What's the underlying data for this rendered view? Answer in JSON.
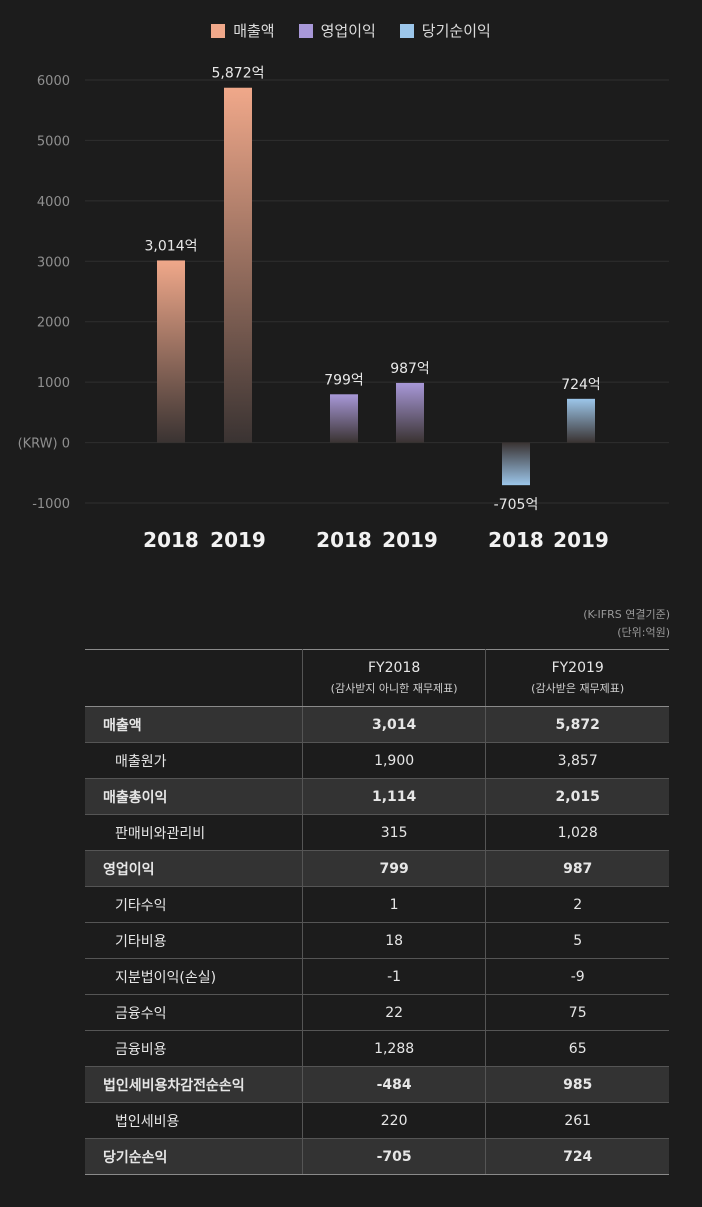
{
  "legend": [
    {
      "label": "매출액",
      "color": "#f0a88a"
    },
    {
      "label": "영업이익",
      "color": "#a898d8"
    },
    {
      "label": "당기순이익",
      "color": "#9cc6ea"
    }
  ],
  "chart_data": {
    "type": "bar",
    "ylabel": "(KRW) 0",
    "ylim": [
      -1000,
      6000
    ],
    "yticks": [
      6000,
      5000,
      4000,
      3000,
      2000,
      1000,
      -1000
    ],
    "grid": true,
    "legend_position": "top-center",
    "groups": [
      {
        "series": "매출액",
        "color": "#f0a88a",
        "bars": [
          {
            "year": "2018",
            "value": 3014,
            "label": "3,014억"
          },
          {
            "year": "2019",
            "value": 5872,
            "label": "5,872억"
          }
        ]
      },
      {
        "series": "영업이익",
        "color": "#a898d8",
        "bars": [
          {
            "year": "2018",
            "value": 799,
            "label": "799억"
          },
          {
            "year": "2019",
            "value": 987,
            "label": "987억"
          }
        ]
      },
      {
        "series": "당기순이익",
        "color": "#9cc6ea",
        "bars": [
          {
            "year": "2018",
            "value": -705,
            "label": "-705억"
          },
          {
            "year": "2019",
            "value": 724,
            "label": "724억"
          }
        ]
      }
    ]
  },
  "notes": {
    "line1": "(K-IFRS 연결기준)",
    "line2": "(단위:억원)"
  },
  "table": {
    "headers": [
      {
        "title": "",
        "sub": ""
      },
      {
        "title": "FY2018",
        "sub": "(감사받지 아니한 재무제표)"
      },
      {
        "title": "FY2019",
        "sub": "(감사받은 재무제표)"
      }
    ],
    "rows": [
      {
        "label": "매출액",
        "v2018": "3,014",
        "v2019": "5,872",
        "bold": true
      },
      {
        "label": "매출원가",
        "v2018": "1,900",
        "v2019": "3,857",
        "bold": false
      },
      {
        "label": "매출총이익",
        "v2018": "1,114",
        "v2019": "2,015",
        "bold": true
      },
      {
        "label": "판매비와관리비",
        "v2018": "315",
        "v2019": "1,028",
        "bold": false
      },
      {
        "label": "영업이익",
        "v2018": "799",
        "v2019": "987",
        "bold": true
      },
      {
        "label": "기타수익",
        "v2018": "1",
        "v2019": "2",
        "bold": false
      },
      {
        "label": "기타비용",
        "v2018": "18",
        "v2019": "5",
        "bold": false
      },
      {
        "label": "지분법이익(손실)",
        "v2018": "-1",
        "v2019": "-9",
        "bold": false
      },
      {
        "label": "금융수익",
        "v2018": "22",
        "v2019": "75",
        "bold": false
      },
      {
        "label": "금융비용",
        "v2018": "1,288",
        "v2019": "65",
        "bold": false
      },
      {
        "label": "법인세비용차감전순손익",
        "v2018": "-484",
        "v2019": "985",
        "bold": true
      },
      {
        "label": "법인세비용",
        "v2018": "220",
        "v2019": "261",
        "bold": false
      },
      {
        "label": "당기순손익",
        "v2018": "-705",
        "v2019": "724",
        "bold": true
      }
    ]
  }
}
